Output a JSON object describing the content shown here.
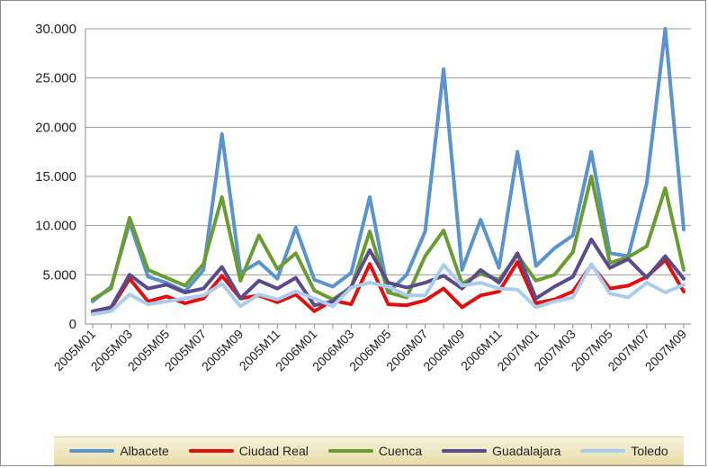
{
  "chart_data": {
    "type": "line",
    "title": "",
    "xlabel": "",
    "ylabel": "",
    "ylim": [
      0,
      30000
    ],
    "y_ticks": [
      "0",
      "5.000",
      "10.000",
      "15.000",
      "20.000",
      "25.000",
      "30.000"
    ],
    "x_tick_labels": [
      "2005M01",
      "2005M03",
      "2005M05",
      "2005M07",
      "2005M09",
      "2005M11",
      "2006M01",
      "2006M03",
      "2006M05",
      "2006M07",
      "2006M09",
      "2006M11",
      "2007M01",
      "2007M03",
      "2007M05",
      "2007M07",
      "2007M09"
    ],
    "categories": [
      "2005M01",
      "2005M02",
      "2005M03",
      "2005M04",
      "2005M05",
      "2005M06",
      "2005M07",
      "2005M08",
      "2005M09",
      "2005M10",
      "2005M11",
      "2005M12",
      "2006M01",
      "2006M02",
      "2006M03",
      "2006M04",
      "2006M05",
      "2006M06",
      "2006M07",
      "2006M08",
      "2006M09",
      "2006M10",
      "2006M11",
      "2006M12",
      "2007M01",
      "2007M02",
      "2007M03",
      "2007M04",
      "2007M05",
      "2007M06",
      "2007M07",
      "2007M08",
      "2007M09"
    ],
    "grid": "horizontal",
    "legend_position": "bottom",
    "series": [
      {
        "name": "Albacete",
        "color": "#5b93cc",
        "values": [
          2300,
          3800,
          10300,
          4800,
          4200,
          3300,
          5500,
          19300,
          5200,
          6300,
          4600,
          9800,
          4500,
          3800,
          5200,
          12900,
          3200,
          5000,
          9400,
          25900,
          5500,
          10600,
          5700,
          17500,
          5900,
          7700,
          9000,
          17500,
          7200,
          6900,
          14300,
          30000,
          9600
        ]
      },
      {
        "name": "Ciudad Real",
        "color": "#e01010",
        "values": [
          1200,
          1600,
          4600,
          2300,
          2800,
          2100,
          2600,
          4900,
          2600,
          2900,
          2200,
          3000,
          1300,
          2400,
          2000,
          6100,
          2000,
          1900,
          2400,
          3600,
          1700,
          2900,
          3300,
          6300,
          2100,
          2500,
          3300,
          6000,
          3600,
          3900,
          4800,
          6500,
          3300
        ]
      },
      {
        "name": "Cuenca",
        "color": "#6a9c34",
        "values": [
          2500,
          3600,
          10800,
          5500,
          4700,
          3900,
          6100,
          12900,
          4400,
          9000,
          5600,
          7200,
          3400,
          2500,
          3700,
          9400,
          3200,
          2700,
          6900,
          9500,
          4100,
          5100,
          4500,
          7000,
          4400,
          5000,
          7300,
          15000,
          6200,
          6800,
          7900,
          13800,
          5500
        ]
      },
      {
        "name": "Guadalajara",
        "color": "#5a4b8a",
        "values": [
          1300,
          1700,
          5000,
          3600,
          4000,
          3200,
          3600,
          5800,
          2600,
          4400,
          3600,
          4700,
          1900,
          2300,
          3800,
          7500,
          4200,
          3700,
          4200,
          4900,
          3600,
          5500,
          4200,
          7200,
          2600,
          3800,
          4800,
          8600,
          5700,
          6600,
          4700,
          6900,
          4600
        ]
      },
      {
        "name": "Toledo",
        "color": "#a9cdea",
        "values": [
          1000,
          1300,
          3000,
          2000,
          2300,
          2600,
          2900,
          4100,
          1800,
          3000,
          2500,
          3300,
          2600,
          1800,
          3700,
          4200,
          3800,
          2900,
          2900,
          6000,
          3900,
          4200,
          3600,
          3500,
          1700,
          2300,
          2700,
          6100,
          3100,
          2700,
          4200,
          3200,
          4000
        ]
      }
    ]
  }
}
